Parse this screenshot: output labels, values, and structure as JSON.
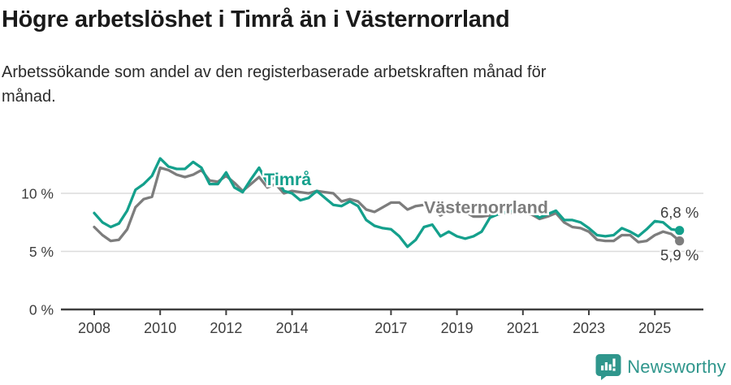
{
  "header": {
    "title": "Högre arbetslöshet i Timrå än i Västernorrland",
    "subtitle_line1": "Arbetssökande som andel av den registerbaserade arbetskraften månad för",
    "subtitle_line2": "månad."
  },
  "chart_data": {
    "type": "line",
    "title": "Högre arbetslöshet i Timrå än i Västernorrland",
    "subtitle": "Arbetssökande som andel av den registerbaserade arbetskraften månad för månad.",
    "x_start": 2008,
    "x_step": 0.25,
    "x_end": 2025.75,
    "ylim": [
      0,
      13.9
    ],
    "grid": "horizontal-only",
    "legend_position": "inline-labels",
    "y_ticks": [
      {
        "value": 0,
        "label": "0 %"
      },
      {
        "value": 5,
        "label": "5 %"
      },
      {
        "value": 10,
        "label": "10 %"
      }
    ],
    "x_ticks": [
      {
        "value": 2008,
        "label": "2008"
      },
      {
        "value": 2010,
        "label": "2010"
      },
      {
        "value": 2012,
        "label": "2012"
      },
      {
        "value": 2014,
        "label": "2014"
      },
      {
        "value": 2017,
        "label": "2017"
      },
      {
        "value": 2019,
        "label": "2019"
      },
      {
        "value": 2021,
        "label": "2021"
      },
      {
        "value": 2023,
        "label": "2023"
      },
      {
        "value": 2025,
        "label": "2025"
      }
    ],
    "series": [
      {
        "name": "Västernorrland",
        "color": "#7d7d7d",
        "end_label": "5,9 %",
        "end_value": 5.9,
        "values": [
          7.1,
          6.4,
          5.9,
          6.0,
          6.9,
          8.8,
          9.5,
          9.7,
          12.2,
          12.0,
          11.6,
          11.4,
          11.6,
          12.0,
          11.1,
          11.0,
          11.5,
          10.9,
          10.2,
          10.8,
          11.4,
          10.5,
          10.8,
          10.0,
          10.2,
          10.1,
          10.0,
          10.2,
          10.1,
          10.0,
          9.3,
          9.5,
          9.3,
          8.6,
          8.4,
          8.8,
          9.2,
          9.2,
          8.6,
          8.9,
          9.0,
          8.7,
          8.1,
          8.5,
          8.7,
          8.4,
          8.0,
          8.0,
          8.1,
          8.2,
          8.3,
          8.3,
          8.3,
          8.2,
          7.8,
          8.0,
          8.3,
          7.5,
          7.1,
          7.0,
          6.7,
          6.0,
          5.9,
          5.9,
          6.4,
          6.4,
          5.8,
          5.9,
          6.4,
          6.7,
          6.5,
          5.9
        ]
      },
      {
        "name": "Timrå",
        "color": "#14a08c",
        "end_label": "6,8 %",
        "end_value": 6.8,
        "values": [
          8.3,
          7.5,
          7.1,
          7.4,
          8.5,
          10.3,
          10.8,
          11.5,
          13.0,
          12.3,
          12.1,
          12.1,
          12.7,
          12.2,
          10.8,
          10.8,
          11.8,
          10.5,
          10.1,
          11.2,
          12.2,
          10.9,
          11.5,
          10.2,
          10.0,
          9.4,
          9.6,
          10.2,
          9.6,
          9.0,
          8.9,
          9.3,
          8.9,
          7.7,
          7.2,
          7.0,
          6.9,
          6.3,
          5.4,
          6.0,
          7.1,
          7.3,
          6.3,
          6.7,
          6.3,
          6.1,
          6.3,
          6.7,
          7.9,
          8.2,
          8.4,
          8.5,
          8.5,
          8.4,
          7.9,
          8.2,
          8.5,
          7.7,
          7.7,
          7.5,
          7.0,
          6.4,
          6.3,
          6.4,
          7.0,
          6.7,
          6.3,
          6.9,
          7.6,
          7.5,
          6.9,
          6.8
        ]
      }
    ],
    "annotations": [
      {
        "text": "Timrå",
        "x": 2013.15,
        "y": 10.7,
        "color": "#14a08c"
      },
      {
        "text": "Västernorrland",
        "x": 2018.0,
        "y": 8.3,
        "color": "#7d7d7d"
      }
    ],
    "colors": {
      "timra": "#14a08c",
      "vasternorrland": "#7d7d7d",
      "grid": "#dcdcdc",
      "axis": "#3f3f3f",
      "tick_text": "#3d3d3d",
      "end_label_text": "#3d3d3d"
    }
  },
  "footer": {
    "brand": "Newsworthy"
  }
}
